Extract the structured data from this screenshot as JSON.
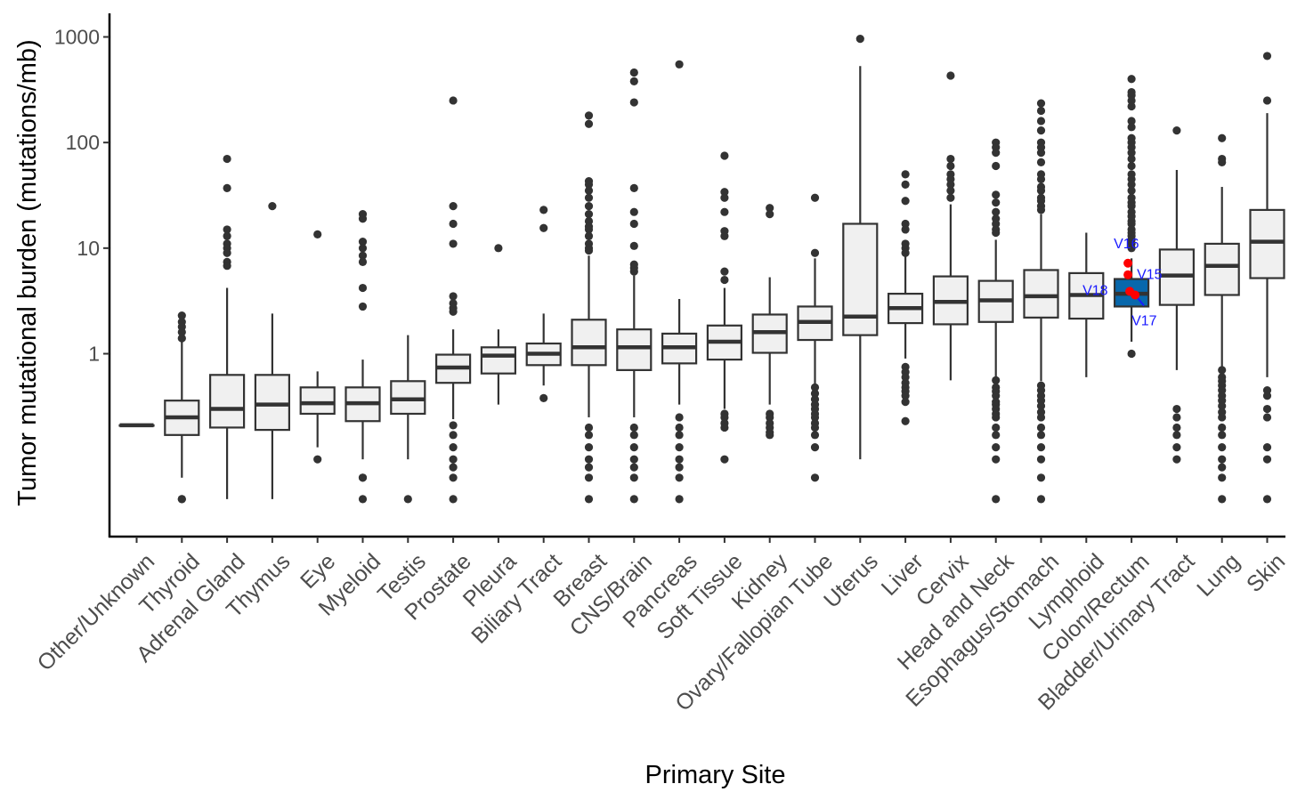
{
  "chart_data": {
    "type": "box",
    "title": "",
    "xlabel": "Primary Site",
    "ylabel": "Tumor mutational burden (mutations/mb)",
    "yscale": "log10",
    "ylim": [
      0.03,
      1500
    ],
    "yticks": [
      1,
      10,
      100,
      1000
    ],
    "ytick_labels": [
      "1",
      "10",
      "100",
      "1000"
    ],
    "grid": false,
    "legend": "none",
    "colors": {
      "box_fill": "#f0f0f0",
      "box_edge": "#333333",
      "highlight_fill": "#0868ac",
      "sample_point": "#ff0000",
      "annotation_text": "#1a1aff",
      "outlier": "#333333"
    },
    "categories": [
      "Other/Unknown",
      "Thyroid",
      "Adrenal Gland",
      "Thymus",
      "Eye",
      "Myeloid",
      "Testis",
      "Prostate",
      "Pleura",
      "Biliary Tract",
      "Breast",
      "CNS/Brain",
      "Pancreas",
      "Soft Tissue",
      "Kidney",
      "Ovary/Fallopian Tube",
      "Uterus",
      "Liver",
      "Cervix",
      "Head and Neck",
      "Esophagus/Stomach",
      "Lymphoid",
      "Colon/Rectum",
      "Bladder/Urinary Tract",
      "Lung",
      "Skin"
    ],
    "boxes": [
      {
        "category": "Other/Unknown",
        "min": 0.21,
        "q1": 0.21,
        "median": 0.21,
        "q3": 0.21,
        "max": 0.21,
        "outliers": []
      },
      {
        "category": "Thyroid",
        "min": 0.067,
        "q1": 0.17,
        "median": 0.25,
        "q3": 0.36,
        "max": 1.3,
        "outliers": [
          2.3,
          2.0,
          1.8,
          1.6,
          1.4,
          0.042,
          0.042
        ]
      },
      {
        "category": "Adrenal Gland",
        "min": 0.042,
        "q1": 0.2,
        "median": 0.3,
        "q3": 0.63,
        "max": 4.2,
        "outliers": [
          70,
          37,
          15,
          13,
          11,
          10,
          9,
          7.4,
          6.8
        ]
      },
      {
        "category": "Thymus",
        "min": 0.042,
        "q1": 0.19,
        "median": 0.33,
        "q3": 0.63,
        "max": 2.4,
        "outliers": [
          25
        ]
      },
      {
        "category": "Eye",
        "min": 0.13,
        "q1": 0.27,
        "median": 0.34,
        "q3": 0.48,
        "max": 0.68,
        "outliers": [
          13.5,
          0.1
        ]
      },
      {
        "category": "Myeloid",
        "min": 0.1,
        "q1": 0.23,
        "median": 0.34,
        "q3": 0.48,
        "max": 0.88,
        "outliers": [
          21,
          19,
          11.5,
          10,
          8.5,
          7.4,
          4.2,
          2.8,
          0.067,
          0.067,
          0.042
        ]
      },
      {
        "category": "Testis",
        "min": 0.1,
        "q1": 0.27,
        "median": 0.37,
        "q3": 0.55,
        "max": 1.5,
        "outliers": [
          0.042
        ]
      },
      {
        "category": "Prostate",
        "min": 0.24,
        "q1": 0.53,
        "median": 0.74,
        "q3": 0.98,
        "max": 1.7,
        "outliers": [
          250,
          25,
          17,
          11,
          3.5,
          3.0,
          2.7,
          2.5,
          0.21,
          0.17,
          0.13,
          0.1,
          0.084,
          0.067,
          0.042
        ]
      },
      {
        "category": "Pleura",
        "min": 0.33,
        "q1": 0.65,
        "median": 0.96,
        "q3": 1.15,
        "max": 1.7,
        "outliers": [
          10
        ]
      },
      {
        "category": "Biliary Tract",
        "min": 0.5,
        "q1": 0.78,
        "median": 1.0,
        "q3": 1.25,
        "max": 2.4,
        "outliers": [
          23,
          15.5,
          0.38
        ]
      },
      {
        "category": "Breast",
        "min": 0.25,
        "q1": 0.78,
        "median": 1.15,
        "q3": 2.1,
        "max": 8.5,
        "outliers": [
          180,
          150,
          43,
          40,
          35,
          30,
          25,
          21,
          18,
          16,
          15,
          13,
          11,
          10,
          9.5,
          0.2,
          0.17,
          0.13,
          0.1,
          0.084,
          0.067,
          0.042
        ]
      },
      {
        "category": "CNS/Brain",
        "min": 0.25,
        "q1": 0.7,
        "median": 1.15,
        "q3": 1.7,
        "max": 5.5,
        "outliers": [
          460,
          380,
          240,
          37,
          22,
          17,
          10.5,
          7,
          6.5,
          6,
          0.2,
          0.17,
          0.13,
          0.1,
          0.084,
          0.067,
          0.042
        ]
      },
      {
        "category": "Pancreas",
        "min": 0.33,
        "q1": 0.81,
        "median": 1.15,
        "q3": 1.55,
        "max": 3.3,
        "outliers": [
          550,
          0.25,
          0.2,
          0.17,
          0.13,
          0.1,
          0.084,
          0.067,
          0.042
        ]
      },
      {
        "category": "Soft Tissue",
        "min": 0.3,
        "q1": 0.88,
        "median": 1.3,
        "q3": 1.85,
        "max": 4.2,
        "outliers": [
          75,
          34,
          30,
          22,
          14.5,
          13,
          6,
          5,
          0.27,
          0.25,
          0.22,
          0.2,
          0.1
        ]
      },
      {
        "category": "Kidney",
        "min": 0.33,
        "q1": 1.02,
        "median": 1.6,
        "q3": 2.35,
        "max": 5.3,
        "outliers": [
          24,
          21,
          0.27,
          0.25,
          0.22,
          0.2,
          0.18,
          0.17
        ]
      },
      {
        "category": "Ovary/Fallopian Tube",
        "min": 0.5,
        "q1": 1.35,
        "median": 2.0,
        "q3": 2.8,
        "max": 8,
        "outliers": [
          30,
          9,
          0.48,
          0.42,
          0.37,
          0.33,
          0.3,
          0.27,
          0.25,
          0.22,
          0.2,
          0.17,
          0.13,
          0.067
        ]
      },
      {
        "category": "Uterus",
        "min": 0.1,
        "q1": 1.5,
        "median": 2.25,
        "q3": 17,
        "max": 530,
        "outliers": [
          960
        ]
      },
      {
        "category": "Liver",
        "min": 0.9,
        "q1": 1.95,
        "median": 2.7,
        "q3": 3.7,
        "max": 8.5,
        "outliers": [
          50,
          40,
          28,
          17,
          15,
          11,
          10,
          9,
          0.75,
          0.67,
          0.6,
          0.53,
          0.48,
          0.44,
          0.4,
          0.35,
          0.23
        ]
      },
      {
        "category": "Cervix",
        "min": 0.56,
        "q1": 1.9,
        "median": 3.1,
        "q3": 5.4,
        "max": 26,
        "outliers": [
          430,
          70,
          60,
          50,
          45,
          40,
          35,
          30
        ]
      },
      {
        "category": "Head and Neck",
        "min": 0.42,
        "q1": 2.0,
        "median": 3.2,
        "q3": 4.9,
        "max": 12,
        "outliers": [
          100,
          90,
          80,
          60,
          32,
          27,
          22,
          19,
          17,
          15,
          14,
          0.56,
          0.48,
          0.44,
          0.4,
          0.35,
          0.33,
          0.3,
          0.27,
          0.25,
          0.2,
          0.17,
          0.13,
          0.1,
          0.042
        ]
      },
      {
        "category": "Esophagus/Stomach",
        "min": 0.55,
        "q1": 2.2,
        "median": 3.5,
        "q3": 6.2,
        "max": 21,
        "outliers": [
          235,
          200,
          160,
          130,
          100,
          90,
          80,
          65,
          50,
          45,
          38,
          35,
          30,
          28,
          25,
          23,
          0.5,
          0.45,
          0.4,
          0.36,
          0.32,
          0.28,
          0.25,
          0.2,
          0.17,
          0.13,
          0.1,
          0.067,
          0.042
        ]
      },
      {
        "category": "Lymphoid",
        "min": 0.6,
        "q1": 2.15,
        "median": 3.6,
        "q3": 5.8,
        "max": 14,
        "outliers": []
      },
      {
        "category": "Colon/Rectum",
        "min": 1.3,
        "q1": 2.8,
        "median": 3.7,
        "q3": 5.1,
        "max": 8,
        "outliers": [
          400,
          300,
          280,
          250,
          220,
          160,
          140,
          110,
          100,
          90,
          80,
          70,
          60,
          50,
          45,
          40,
          35,
          30,
          27,
          25,
          22,
          20,
          18,
          17,
          15,
          14,
          13,
          12,
          11,
          10,
          1.0
        ],
        "highlight": true
      },
      {
        "category": "Bladder/Urinary Tract",
        "min": 0.7,
        "q1": 2.9,
        "median": 5.5,
        "q3": 9.7,
        "max": 55,
        "outliers": [
          130,
          0.3,
          0.25,
          0.2,
          0.17,
          0.13,
          0.1
        ]
      },
      {
        "category": "Lung",
        "min": 0.28,
        "q1": 3.6,
        "median": 6.8,
        "q3": 11,
        "max": 38,
        "outliers": [
          110,
          70,
          65,
          0.7,
          0.6,
          0.55,
          0.5,
          0.45,
          0.4,
          0.36,
          0.32,
          0.28,
          0.25,
          0.2,
          0.17,
          0.13,
          0.1,
          0.084,
          0.067,
          0.042
        ]
      },
      {
        "category": "Skin",
        "min": 0.6,
        "q1": 5.2,
        "median": 11.5,
        "q3": 23,
        "max": 190,
        "outliers": [
          660,
          250,
          0.45,
          0.4,
          0.3,
          0.25,
          0.13,
          0.1,
          0.042
        ]
      }
    ],
    "samples": [
      {
        "label": "V16",
        "category": "Colon/Rectum",
        "value": 7.2
      },
      {
        "label": "V15",
        "category": "Colon/Rectum",
        "value": 5.6
      },
      {
        "label": "V18",
        "category": "Colon/Rectum",
        "value": 3.9
      },
      {
        "label": "V17",
        "category": "Colon/Rectum",
        "value": 3.6
      }
    ]
  }
}
